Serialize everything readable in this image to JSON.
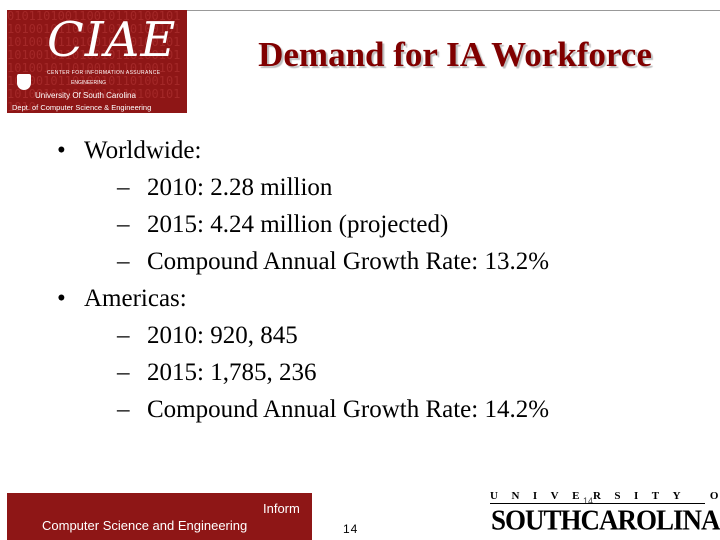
{
  "logo": {
    "wordmark": "CIAE",
    "line1": "CENTER FOR INFORMATION ASSURANCE",
    "line2": "ENGINEERING",
    "line3": "University Of South Carolina",
    "line4": "Dept. of Computer Science & Engineering",
    "background_digits": "0101101001100101101001011010010110100101101001011010010110100101101001011010010110100101101001011010010110100101101001011010010110100101101001011010010110100101101001011010",
    "color": "#8e1616"
  },
  "slide": {
    "title": "Demand for IA Workforce",
    "title_color": "#800000",
    "sections": [
      {
        "label": "Worldwide:",
        "items": [
          "2010: 2.28 million",
          "2015: 4.24 million (projected)",
          "Compound Annual Growth Rate: 13.2%"
        ]
      },
      {
        "label": "Americas:",
        "items": [
          "2010: 920, 845",
          "2015: 1,785, 236",
          "Compound Annual Growth Rate: 14.2%"
        ]
      }
    ]
  },
  "footer": {
    "inform_text": "Inform",
    "dept_text": "Computer Science and Engineering",
    "page_number": "14",
    "page_number_small": "14",
    "usc_university_line": "UNIVERSITY OF",
    "usc_name": "SOUTHCAROLINA."
  }
}
